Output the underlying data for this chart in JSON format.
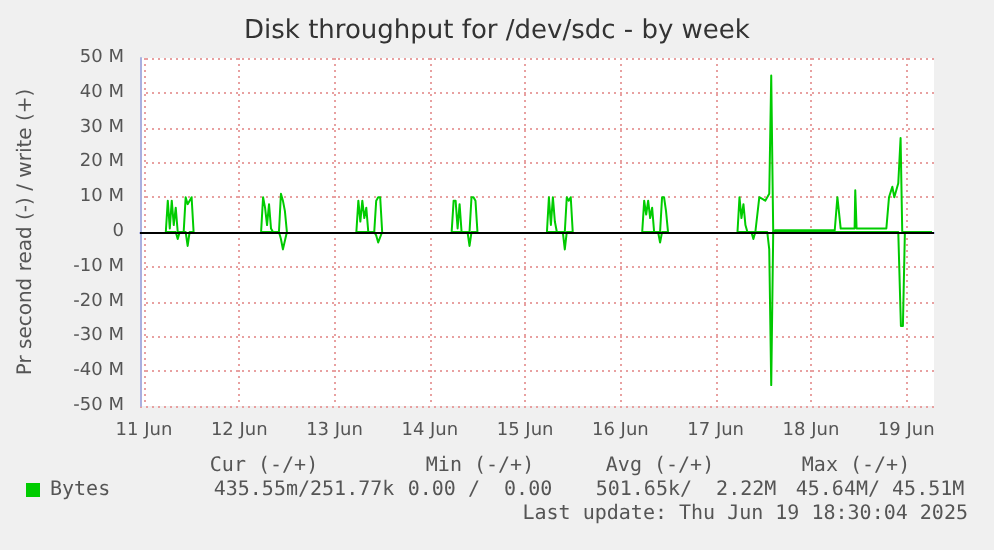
{
  "chart_data": {
    "type": "line",
    "title": "Disk throughput for /dev/sdc - by week",
    "ylabel": "Pr second read (-) / write (+)",
    "xlim": [
      "2025-06-10T23:00",
      "2025-06-19T07:00"
    ],
    "xticks": [
      {
        "value": "2025-06-11",
        "label": "11 Jun"
      },
      {
        "value": "2025-06-12",
        "label": "12 Jun"
      },
      {
        "value": "2025-06-13",
        "label": "13 Jun"
      },
      {
        "value": "2025-06-14",
        "label": "14 Jun"
      },
      {
        "value": "2025-06-15",
        "label": "15 Jun"
      },
      {
        "value": "2025-06-16",
        "label": "16 Jun"
      },
      {
        "value": "2025-06-17",
        "label": "17 Jun"
      },
      {
        "value": "2025-06-18",
        "label": "18 Jun"
      },
      {
        "value": "2025-06-19",
        "label": "19 Jun"
      }
    ],
    "ylim": [
      -50,
      50
    ],
    "yticks": [
      {
        "value": -50,
        "label": "-50 M"
      },
      {
        "value": -40,
        "label": "-40 M"
      },
      {
        "value": -30,
        "label": "-30 M"
      },
      {
        "value": -20,
        "label": "-20 M"
      },
      {
        "value": -10,
        "label": "-10 M"
      },
      0,
      {
        "value": 10,
        "label": "10 M"
      },
      {
        "value": 20,
        "label": "20 M"
      },
      {
        "value": 30,
        "label": "30 M"
      },
      {
        "value": 40,
        "label": "40 M"
      },
      {
        "value": 50,
        "label": "50 M"
      }
    ],
    "grid": true,
    "legend": "bottom left",
    "ref_lines": [
      {
        "axis": "y",
        "value": 0,
        "color": "#000000"
      }
    ],
    "series": [
      {
        "name": "Bytes",
        "color": "#00cc00",
        "x": [
          "2025-06-11T05:30",
          "2025-06-11T06:00",
          "2025-06-11T06:30",
          "2025-06-11T07:00",
          "2025-06-11T07:30",
          "2025-06-11T08:00",
          "2025-06-11T08:30",
          "2025-06-11T10:00",
          "2025-06-11T10:30",
          "2025-06-11T11:00",
          "2025-06-11T11:30",
          "2025-06-11T12:00",
          "2025-06-11T12:30",
          "2025-06-11T13:00",
          "2025-06-12T05:30",
          "2025-06-12T06:00",
          "2025-06-12T06:30",
          "2025-06-12T07:00",
          "2025-06-12T07:30",
          "2025-06-12T08:00",
          "2025-06-12T08:30",
          "2025-06-12T10:00",
          "2025-06-12T10:30",
          "2025-06-12T11:00",
          "2025-06-12T11:30",
          "2025-06-12T12:00",
          "2025-06-12T12:30",
          "2025-06-13T05:30",
          "2025-06-13T06:00",
          "2025-06-13T06:30",
          "2025-06-13T07:00",
          "2025-06-13T07:30",
          "2025-06-13T08:00",
          "2025-06-13T08:30",
          "2025-06-13T10:00",
          "2025-06-13T10:30",
          "2025-06-13T11:00",
          "2025-06-13T11:30",
          "2025-06-13T12:00",
          "2025-06-13T12:30",
          "2025-06-14T05:30",
          "2025-06-14T06:00",
          "2025-06-14T06:30",
          "2025-06-14T07:00",
          "2025-06-14T07:30",
          "2025-06-14T08:00",
          "2025-06-14T10:00",
          "2025-06-14T10:30",
          "2025-06-14T11:00",
          "2025-06-14T11:30",
          "2025-06-14T12:00",
          "2025-06-14T12:30",
          "2025-06-15T05:30",
          "2025-06-15T06:00",
          "2025-06-15T06:30",
          "2025-06-15T07:00",
          "2025-06-15T07:30",
          "2025-06-15T08:00",
          "2025-06-15T10:00",
          "2025-06-15T10:30",
          "2025-06-15T11:00",
          "2025-06-15T11:30",
          "2025-06-15T12:00",
          "2025-06-15T12:30",
          "2025-06-16T05:30",
          "2025-06-16T06:00",
          "2025-06-16T06:30",
          "2025-06-16T07:00",
          "2025-06-16T07:30",
          "2025-06-16T08:00",
          "2025-06-16T08:30",
          "2025-06-16T10:00",
          "2025-06-16T10:30",
          "2025-06-16T11:00",
          "2025-06-16T11:30",
          "2025-06-16T12:00",
          "2025-06-16T12:30",
          "2025-06-17T05:30",
          "2025-06-17T06:00",
          "2025-06-17T06:30",
          "2025-06-17T07:00",
          "2025-06-17T07:30",
          "2025-06-17T08:00",
          "2025-06-17T10:00",
          "2025-06-17T11:00",
          "2025-06-17T12:30",
          "2025-06-17T13:30",
          "2025-06-17T14:00",
          "2025-06-17T14:30",
          "2025-06-17T15:00",
          "2025-06-18T06:00",
          "2025-06-18T06:40",
          "2025-06-18T07:30",
          "2025-06-18T11:00",
          "2025-06-18T11:10",
          "2025-06-18T11:30",
          "2025-06-18T19:00",
          "2025-06-18T19:40",
          "2025-06-18T20:30",
          "2025-06-18T21:00",
          "2025-06-18T22:00",
          "2025-06-18T22:35",
          "2025-06-18T23:00",
          "2025-06-19T00:00",
          "2025-06-19T06:30"
        ],
        "values": [
          0,
          9,
          1,
          9,
          2,
          7,
          0,
          0,
          10,
          8,
          9,
          10,
          0,
          null,
          0,
          10,
          7,
          2,
          8,
          1,
          0,
          0,
          11,
          9,
          6,
          0,
          null,
          0,
          9,
          3,
          9,
          4,
          7,
          0,
          0,
          9,
          10,
          10,
          0,
          null,
          0,
          9,
          9,
          1,
          8,
          0,
          0,
          10,
          10,
          9,
          0,
          null,
          0,
          10,
          2,
          10,
          3,
          0,
          0,
          10,
          9,
          10,
          0,
          null,
          0,
          9,
          5,
          9,
          4,
          7,
          0,
          0,
          10,
          10,
          6,
          0,
          null,
          0,
          10,
          4,
          8,
          2,
          0,
          0,
          10,
          9,
          11,
          45,
          0,
          0.5,
          0.5,
          10,
          1,
          1,
          12,
          1,
          1,
          10,
          13,
          10,
          14,
          27,
          0,
          0,
          0
        ]
      },
      {
        "color": "#00c800",
        "x": [
          "2025-06-11T05:30",
          "2025-06-11T08:00",
          "2025-06-11T08:30",
          "2025-06-11T09:00",
          "2025-06-11T10:30",
          "2025-06-11T11:00",
          "2025-06-11T11:30",
          "2025-06-11T12:30",
          "2025-06-11T13:00",
          "2025-06-12T05:30",
          "2025-06-12T10:00",
          "2025-06-12T10:30",
          "2025-06-12T11:00",
          "2025-06-12T12:00",
          "2025-06-12T12:30",
          "2025-06-13T05:30",
          "2025-06-13T10:00",
          "2025-06-13T10:30",
          "2025-06-13T11:00",
          "2025-06-13T12:00",
          "2025-06-13T12:30",
          "2025-06-14T05:30",
          "2025-06-14T09:30",
          "2025-06-14T10:00",
          "2025-06-14T10:30",
          "2025-06-14T12:00",
          "2025-06-14T12:30",
          "2025-06-15T05:30",
          "2025-06-15T09:30",
          "2025-06-15T10:00",
          "2025-06-15T10:30",
          "2025-06-15T12:00",
          "2025-06-15T12:30",
          "2025-06-16T05:30",
          "2025-06-16T09:30",
          "2025-06-16T10:00",
          "2025-06-16T10:30",
          "2025-06-16T12:00",
          "2025-06-16T12:30",
          "2025-06-17T05:30",
          "2025-06-17T09:00",
          "2025-06-17T09:30",
          "2025-06-17T10:00",
          "2025-06-17T13:00",
          "2025-06-17T13:30",
          "2025-06-17T14:00",
          "2025-06-17T14:30",
          "2025-06-18T22:00",
          "2025-06-18T22:40",
          "2025-06-18T23:10",
          "2025-06-18T23:40",
          "2025-06-19T06:30"
        ],
        "values": [
          0,
          0,
          -2,
          0,
          0,
          -4,
          0,
          0,
          null,
          0,
          0,
          -2,
          -5,
          0,
          null,
          0,
          0,
          -1,
          -3,
          0,
          null,
          0,
          0,
          -4,
          0,
          0,
          null,
          0,
          0,
          -5,
          0,
          0,
          null,
          0,
          0,
          -3,
          0,
          0,
          null,
          0,
          0,
          -2,
          0,
          0,
          -5,
          -44,
          0,
          0,
          -27,
          -27,
          0,
          0
        ]
      }
    ],
    "annotations": [
      "Cur (-/+)",
      "Min (-/+)",
      "Avg (-/+)",
      "Max (-/+)",
      "435.55m/251.77k",
      "0.00 /  0.00",
      "501.65k/  2.22M",
      "45.64M/ 45.51M",
      "Last update: Thu Jun 19 18:30:04 2025"
    ]
  }
}
